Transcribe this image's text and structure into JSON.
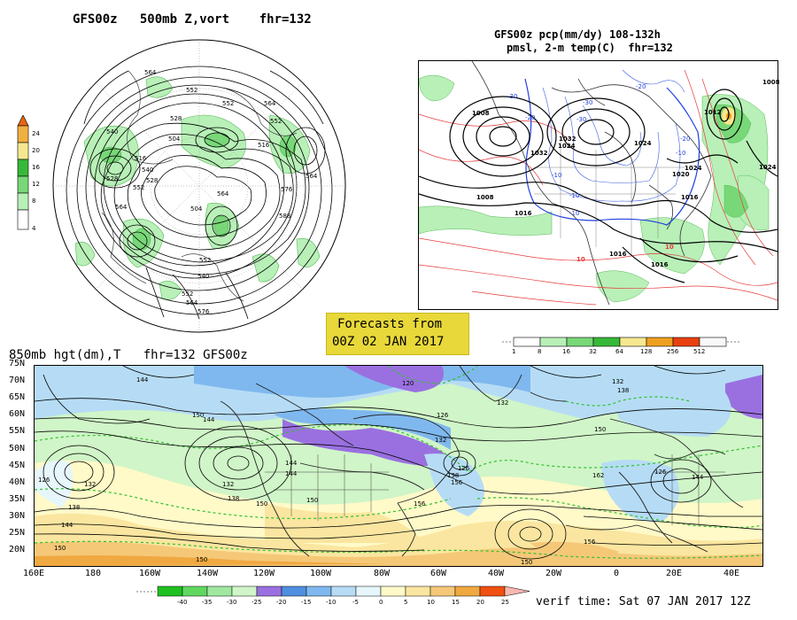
{
  "panels": {
    "top_left": {
      "title": "GFS00z   500mb Z,vort    fhr=132",
      "colorbar": {
        "ticks": [
          "24",
          "20",
          "16",
          "12",
          "8",
          "4"
        ],
        "colors": [
          "#e86410",
          "#f0b040",
          "#f5e890",
          "#38b838",
          "#78d878",
          "#b8f0b8",
          "#ffffff"
        ]
      },
      "contour_labels": [
        "564",
        "552",
        "552",
        "564",
        "528",
        "552",
        "504",
        "516",
        "540",
        "528",
        "540",
        "516",
        "552",
        "564",
        "576",
        "564",
        "504",
        "552",
        "540",
        "552",
        "564",
        "576",
        "588",
        "564",
        "528"
      ]
    },
    "top_right": {
      "title_line1": "GFS00z pcp(mm/dy) 108-132h",
      "title_line2": "pmsl, 2-m temp(C)  fhr=132",
      "colorbar": {
        "ticks": [
          "1",
          "8",
          "16",
          "32",
          "64",
          "128",
          "256",
          "512"
        ],
        "colors": [
          "#ffffff",
          "#b8f0b8",
          "#78d878",
          "#38b838",
          "#f5e890",
          "#f0a020",
          "#e84010",
          "#f8f8f8"
        ]
      },
      "contour_labels": [
        "1032",
        "1024",
        "1012",
        "1008",
        "1032",
        "1024",
        "1008",
        "1016",
        "1024",
        "1016",
        "1008",
        "1016",
        "1024",
        "1016",
        "1020"
      ],
      "temp_labels": [
        "-30",
        "-20",
        "-10",
        "-30",
        "-20",
        "-10",
        "-20",
        "-10",
        "10",
        "-10",
        "10",
        "-30"
      ]
    },
    "bottom": {
      "title": "850mb hgt(dm),T   fhr=132 GFS00z",
      "lat_labels": [
        "75N",
        "70N",
        "65N",
        "60N",
        "55N",
        "50N",
        "45N",
        "40N",
        "35N",
        "30N",
        "25N",
        "20N"
      ],
      "lon_labels": [
        "160E",
        "180",
        "160W",
        "140W",
        "120W",
        "100W",
        "80W",
        "60W",
        "40W",
        "20W",
        "0",
        "20E",
        "40E"
      ],
      "contour_labels": [
        "144",
        "126",
        "120",
        "126",
        "132",
        "138",
        "132",
        "144",
        "150",
        "132",
        "150",
        "132",
        "138",
        "144",
        "150",
        "144",
        "150",
        "156",
        "162",
        "150",
        "156",
        "144",
        "126",
        "138",
        "150",
        "132",
        "126",
        "156",
        "138",
        "144",
        "150"
      ],
      "colorbar": {
        "ticks": [
          "-40",
          "-35",
          "-30",
          "-25",
          "-20",
          "-15",
          "-10",
          "-5",
          "0",
          "5",
          "10",
          "15",
          "20",
          "25"
        ],
        "colors": [
          "#20c020",
          "#60d860",
          "#a0e8a0",
          "#d0f5c8",
          "#9a70e0",
          "#4f8fe0",
          "#7fb8ee",
          "#b6dcf5",
          "#e6f6fa",
          "#fffac8",
          "#fae6a0",
          "#f5c878",
          "#f0a840",
          "#f05010"
        ]
      }
    }
  },
  "forecast_box": {
    "line1": "Forecasts from",
    "line2": "00Z 02 JAN 2017"
  },
  "verif_time": "verif time: Sat 07 JAN 2017 12Z"
}
